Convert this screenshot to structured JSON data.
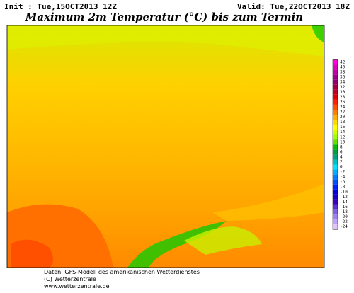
{
  "header": {
    "init": "Init : Tue,15OCT2013 12Z",
    "valid": "Valid: Tue,22OCT2013 18Z",
    "title": "Maximum 2m Temperatur (°C) bis zum Termin"
  },
  "legend": {
    "levels": [
      {
        "value": 42,
        "color": "#ff00d8"
      },
      {
        "value": 40,
        "color": "#e000c0"
      },
      {
        "value": 38,
        "color": "#c000a8"
      },
      {
        "value": 36,
        "color": "#a00090"
      },
      {
        "value": 34,
        "color": "#900070"
      },
      {
        "value": 32,
        "color": "#a00040"
      },
      {
        "value": 30,
        "color": "#c00020"
      },
      {
        "value": 28,
        "color": "#e00000"
      },
      {
        "value": 26,
        "color": "#ff2000"
      },
      {
        "value": 24,
        "color": "#ff5000"
      },
      {
        "value": 22,
        "color": "#ff8000"
      },
      {
        "value": 20,
        "color": "#ffb000"
      },
      {
        "value": 18,
        "color": "#ffd800"
      },
      {
        "value": 16,
        "color": "#ffff00"
      },
      {
        "value": 14,
        "color": "#d0ff00"
      },
      {
        "value": 12,
        "color": "#a0ff00"
      },
      {
        "value": 10,
        "color": "#60e000"
      },
      {
        "value": 8,
        "color": "#00c000"
      },
      {
        "value": 6,
        "color": "#00a040"
      },
      {
        "value": 4,
        "color": "#00a080"
      },
      {
        "value": 2,
        "color": "#00c0c0"
      },
      {
        "value": 0,
        "color": "#00e0ff"
      },
      {
        "value": -2,
        "color": "#00b0ff"
      },
      {
        "value": -4,
        "color": "#0080ff"
      },
      {
        "value": -6,
        "color": "#0050ff"
      },
      {
        "value": -8,
        "color": "#0020ff"
      },
      {
        "value": -10,
        "color": "#0000e0"
      },
      {
        "value": -12,
        "color": "#2000c0"
      },
      {
        "value": -14,
        "color": "#4000c0"
      },
      {
        "value": -16,
        "color": "#6030d0"
      },
      {
        "value": -18,
        "color": "#8060e0"
      },
      {
        "value": -20,
        "color": "#a080f0"
      },
      {
        "value": -22,
        "color": "#c0a0ff"
      },
      {
        "value": -24,
        "color": "#e0c0ff"
      }
    ]
  },
  "footer": [
    "Daten: GFS-Modell des amerikanischen Wetterdienstes",
    "(C) Wetterzentrale",
    "www.wetterzentrale.de"
  ]
}
